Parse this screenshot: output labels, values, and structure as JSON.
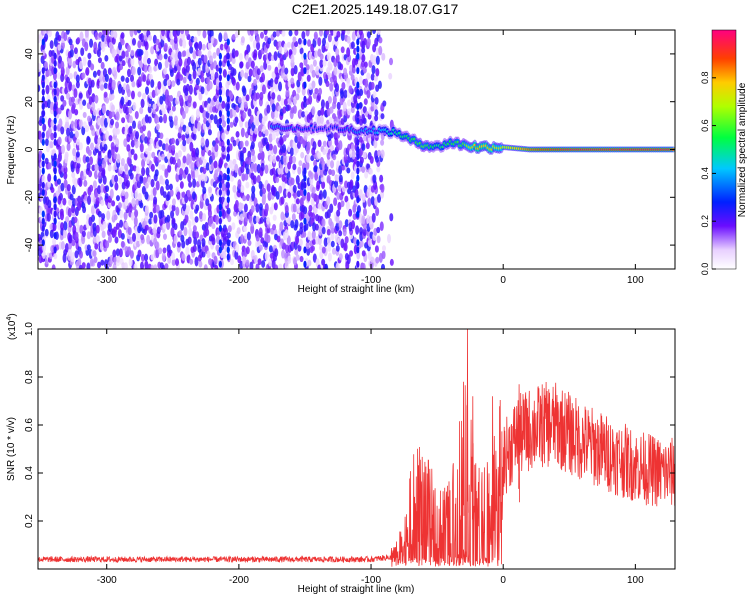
{
  "title": "C2E1.2025.149.18.07.G17",
  "chart_data": [
    {
      "type": "heatmap",
      "xlabel": "Height of straight line (km)",
      "ylabel": "Frequency (Hz)",
      "xlim": [
        -352,
        130
      ],
      "ylim": [
        -50,
        50
      ],
      "xticks": [
        -300,
        -200,
        -100,
        0,
        100
      ],
      "yticks": [
        -40,
        -20,
        0,
        20,
        40
      ],
      "colorbar": {
        "label": "Normalized spectral amplitude",
        "range": [
          0,
          1
        ],
        "ticks": [
          0.0,
          0.2,
          0.4,
          0.6,
          0.8
        ],
        "tick_labels": [
          "0.0",
          "0.2",
          "0.4",
          "0.6",
          "0.8"
        ]
      },
      "noise_region": {
        "x_start": -352,
        "x_end": -85,
        "freq_range": [
          -50,
          50
        ],
        "amplitude": "0.05-0.25"
      },
      "signal_ridge": [
        {
          "x": -175,
          "freq": 10,
          "amp": 0.35
        },
        {
          "x": -160,
          "freq": 9,
          "amp": 0.3
        },
        {
          "x": -130,
          "freq": 9,
          "amp": 0.25
        },
        {
          "x": -110,
          "freq": 8,
          "amp": 0.35
        },
        {
          "x": -95,
          "freq": 8,
          "amp": 0.4
        },
        {
          "x": -80,
          "freq": 7,
          "amp": 0.5
        },
        {
          "x": -70,
          "freq": 4,
          "amp": 0.55
        },
        {
          "x": -60,
          "freq": 2,
          "amp": 0.6
        },
        {
          "x": -50,
          "freq": 1,
          "amp": 0.5
        },
        {
          "x": -40,
          "freq": 3,
          "amp": 0.55
        },
        {
          "x": -30,
          "freq": 2,
          "amp": 0.6
        },
        {
          "x": -20,
          "freq": 1,
          "amp": 0.8
        },
        {
          "x": -10,
          "freq": 1,
          "amp": 0.75
        },
        {
          "x": 0,
          "freq": 1,
          "amp": 0.7
        },
        {
          "x": 20,
          "freq": 0,
          "amp": 0.85
        },
        {
          "x": 50,
          "freq": 0,
          "amp": 0.95
        },
        {
          "x": 90,
          "freq": 0,
          "amp": 0.95
        },
        {
          "x": 130,
          "freq": 0,
          "amp": 0.95
        }
      ]
    },
    {
      "type": "line",
      "xlabel": "Height of straight line (km)",
      "ylabel": "SNR (10 * v/v)",
      "y_multiplier": "(x10",
      "y_multiplier_exp": "4",
      "y_multiplier_close": ")",
      "xlim": [
        -352,
        130
      ],
      "ylim": [
        0,
        1.0
      ],
      "xticks": [
        -300,
        -200,
        -100,
        0,
        100
      ],
      "yticks": [
        0.2,
        0.4,
        0.6,
        0.8,
        1.0
      ],
      "ytick_labels": [
        "0.2",
        "0.4",
        "0.6",
        "0.8",
        "1.0"
      ],
      "series": [
        {
          "color": "#ee3333",
          "envelope_x": [
            -352,
            -100,
            -85,
            -75,
            -70,
            -60,
            -50,
            -40,
            -35,
            -28,
            -20,
            -10,
            0,
            10,
            20,
            30,
            40,
            60,
            80,
            100,
            120,
            130
          ],
          "envelope_y": [
            0.04,
            0.04,
            0.05,
            0.1,
            0.25,
            0.28,
            0.18,
            0.2,
            0.3,
            0.5,
            0.25,
            0.3,
            0.45,
            0.55,
            0.58,
            0.6,
            0.6,
            0.53,
            0.48,
            0.43,
            0.4,
            0.4
          ],
          "spikes": [
            {
              "x": -27,
              "y": 1.0
            },
            {
              "x": -30,
              "y": 0.78
            },
            {
              "x": -23,
              "y": 0.72
            },
            {
              "x": -8,
              "y": 0.72
            },
            {
              "x": 12,
              "y": 0.77
            }
          ]
        }
      ]
    }
  ]
}
